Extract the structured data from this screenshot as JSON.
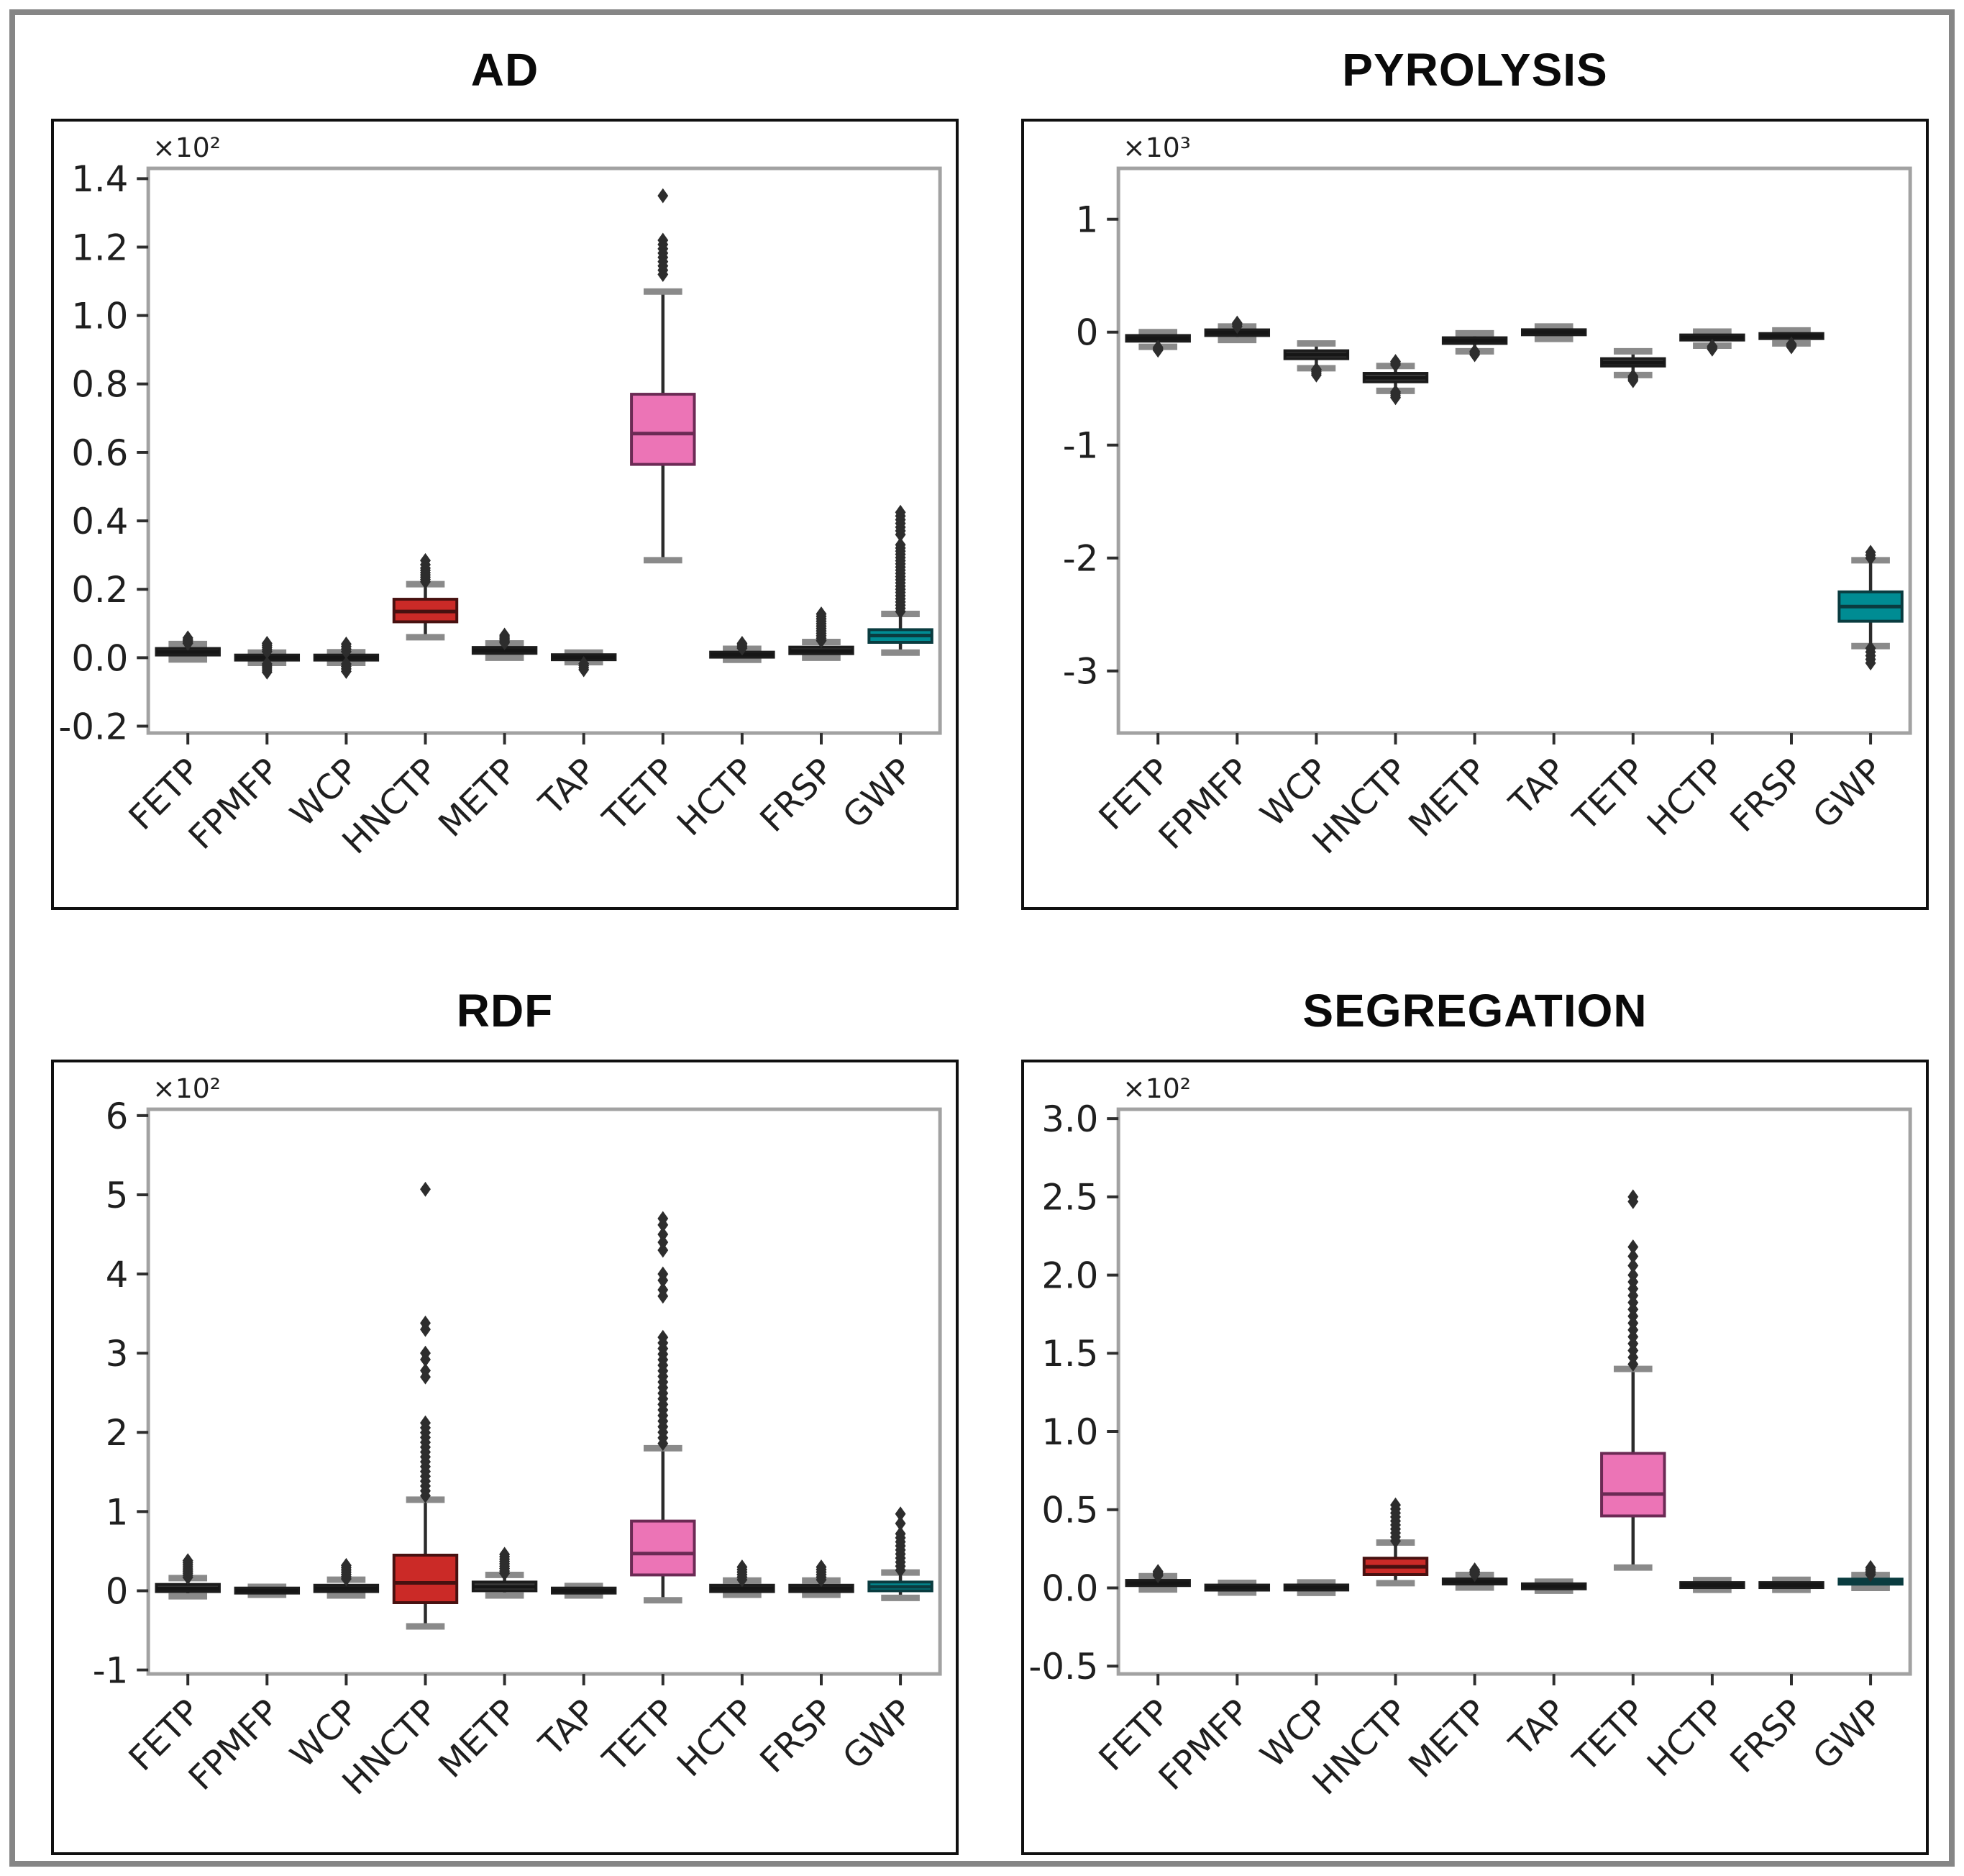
{
  "style": {
    "background": "#ffffff",
    "outer_border": "#868686",
    "panel_border": "#0f0f0f",
    "spine_color": "#a2a2a2",
    "tick_color": "#2e2e2e",
    "text_color": "#1f1f1f",
    "whisker_color": "#2b2b2b",
    "cap_color": "#8a8a8a",
    "flier_color": "#2d2d2d"
  },
  "colors": {
    "default": {
      "fill": "#3d3d3d",
      "stroke": "#1c1c1c",
      "median": "#161616"
    },
    "red": {
      "fill": "#cb2a27",
      "stroke": "#471110",
      "median": "#471110"
    },
    "pink": {
      "fill": "#ec74b6",
      "stroke": "#6b2a54",
      "median": "#6b2a54"
    },
    "teal": {
      "fill": "#008c93",
      "stroke": "#0a3c40",
      "median": "#0a3c40"
    }
  },
  "categories": [
    "FETP",
    "FPMFP",
    "WCP",
    "HNCTP",
    "METP",
    "TAP",
    "TETP",
    "HCTP",
    "FRSP",
    "GWP"
  ],
  "chart_data": [
    {
      "type": "boxplot",
      "title": "AD",
      "offset_label": "×10²",
      "xlabel": "",
      "ylabel": "",
      "ylim": [
        -0.22,
        1.43
      ],
      "yticks": [
        {
          "v": 1.4,
          "label": "1.4"
        },
        {
          "v": 1.2,
          "label": "1.2"
        },
        {
          "v": 1.0,
          "label": "1.0"
        },
        {
          "v": 0.8,
          "label": "0.8"
        },
        {
          "v": 0.6,
          "label": "0.6"
        },
        {
          "v": 0.4,
          "label": "0.4"
        },
        {
          "v": 0.2,
          "label": "0.2"
        },
        {
          "v": 0.0,
          "label": "0.0"
        },
        {
          "v": -0.2,
          "label": "-0.2"
        }
      ],
      "boxes": [
        {
          "category": "FETP",
          "color": "default",
          "whislo": -0.005,
          "q1": 0.008,
          "med": 0.017,
          "q3": 0.027,
          "whishi": 0.04,
          "fliers": [],
          "fliers_dense": [
            [
              0.042,
              0.058,
              5
            ]
          ]
        },
        {
          "category": "FPMFP",
          "color": "default",
          "whislo": -0.015,
          "q1": -0.005,
          "med": 0.0,
          "q3": 0.006,
          "whishi": 0.015,
          "fliers": [],
          "fliers_dense": [
            [
              -0.042,
              -0.018,
              5
            ],
            [
              0.018,
              0.042,
              5
            ]
          ]
        },
        {
          "category": "WCP",
          "color": "default",
          "whislo": -0.015,
          "q1": -0.006,
          "med": 0.0,
          "q3": 0.007,
          "whishi": 0.016,
          "fliers": [],
          "fliers_dense": [
            [
              -0.04,
              -0.018,
              4
            ],
            [
              0.018,
              0.04,
              4
            ]
          ]
        },
        {
          "category": "HNCTP",
          "color": "red",
          "whislo": 0.06,
          "q1": 0.105,
          "med": 0.135,
          "q3": 0.171,
          "whishi": 0.215,
          "fliers": [
            0.272,
            0.284
          ],
          "fliers_dense": [
            [
              0.222,
              0.262,
              7
            ]
          ]
        },
        {
          "category": "METP",
          "color": "default",
          "whislo": 0.0,
          "q1": 0.013,
          "med": 0.021,
          "q3": 0.03,
          "whishi": 0.042,
          "fliers": [],
          "fliers_dense": [
            [
              0.044,
              0.066,
              6
            ]
          ]
        },
        {
          "category": "TAP",
          "color": "default",
          "whislo": -0.013,
          "q1": -0.004,
          "med": 0.001,
          "q3": 0.007,
          "whishi": 0.015,
          "fliers": [],
          "fliers_dense": [
            [
              -0.035,
              -0.017,
              4
            ]
          ]
        },
        {
          "category": "TETP",
          "color": "pink",
          "whislo": 0.285,
          "q1": 0.565,
          "med": 0.655,
          "q3": 0.77,
          "whishi": 1.07,
          "fliers": [
            1.35
          ],
          "fliers_dense": [
            [
              1.12,
              1.22,
              9
            ]
          ]
        },
        {
          "category": "HCTP",
          "color": "default",
          "whislo": -0.006,
          "q1": 0.002,
          "med": 0.009,
          "q3": 0.016,
          "whishi": 0.026,
          "fliers": [],
          "fliers_dense": [
            [
              0.028,
              0.042,
              4
            ]
          ]
        },
        {
          "category": "FRSP",
          "color": "default",
          "whislo": 0.0,
          "q1": 0.012,
          "med": 0.02,
          "q3": 0.031,
          "whishi": 0.046,
          "fliers": [],
          "fliers_dense": [
            [
              0.05,
              0.128,
              12
            ]
          ]
        },
        {
          "category": "GWP",
          "color": "teal",
          "whislo": 0.015,
          "q1": 0.045,
          "med": 0.065,
          "q3": 0.082,
          "whishi": 0.128,
          "fliers": [],
          "fliers_dense": [
            [
              0.135,
              0.33,
              22
            ],
            [
              0.36,
              0.425,
              7
            ]
          ]
        }
      ]
    },
    {
      "type": "boxplot",
      "title": "PYROLYSIS",
      "offset_label": "×10³",
      "xlabel": "",
      "ylabel": "",
      "ylim": [
        -3.55,
        1.45
      ],
      "yticks": [
        {
          "v": 1,
          "label": "1"
        },
        {
          "v": 0,
          "label": "0"
        },
        {
          "v": -1,
          "label": "-1"
        },
        {
          "v": -2,
          "label": "-2"
        },
        {
          "v": -3,
          "label": "-3"
        }
      ],
      "boxes": [
        {
          "category": "FETP",
          "color": "default",
          "whislo": -0.13,
          "q1": -0.08,
          "med": -0.055,
          "q3": -0.03,
          "whishi": 0.0,
          "fliers": [],
          "fliers_dense": [
            [
              -0.16,
              -0.135,
              3
            ]
          ]
        },
        {
          "category": "FPMFP",
          "color": "default",
          "whislo": -0.07,
          "q1": -0.03,
          "med": -0.005,
          "q3": 0.02,
          "whishi": 0.05,
          "fliers": [],
          "fliers_dense": [
            [
              0.05,
              0.08,
              3
            ]
          ]
        },
        {
          "category": "WCP",
          "color": "default",
          "whislo": -0.32,
          "q1": -0.235,
          "med": -0.2,
          "q3": -0.165,
          "whishi": -0.1,
          "fliers": [],
          "fliers_dense": [
            [
              -0.38,
              -0.33,
              4
            ]
          ]
        },
        {
          "category": "HNCTP",
          "color": "default",
          "whislo": -0.52,
          "q1": -0.44,
          "med": -0.405,
          "q3": -0.365,
          "whishi": -0.3,
          "fliers": [],
          "fliers_dense": [
            [
              -0.58,
              -0.53,
              4
            ],
            [
              -0.29,
              -0.26,
              3
            ]
          ]
        },
        {
          "category": "METP",
          "color": "default",
          "whislo": -0.17,
          "q1": -0.1,
          "med": -0.075,
          "q3": -0.05,
          "whishi": -0.01,
          "fliers": [],
          "fliers_dense": [
            [
              -0.2,
              -0.17,
              3
            ]
          ]
        },
        {
          "category": "TAP",
          "color": "default",
          "whislo": -0.06,
          "q1": -0.02,
          "med": 0.0,
          "q3": 0.018,
          "whishi": 0.05,
          "fliers": [],
          "fliers_dense": []
        },
        {
          "category": "TETP",
          "color": "default",
          "whislo": -0.38,
          "q1": -0.3,
          "med": -0.27,
          "q3": -0.235,
          "whishi": -0.17,
          "fliers": [],
          "fliers_dense": [
            [
              -0.43,
              -0.39,
              4
            ]
          ]
        },
        {
          "category": "HCTP",
          "color": "default",
          "whislo": -0.12,
          "q1": -0.07,
          "med": -0.05,
          "q3": -0.025,
          "whishi": 0.005,
          "fliers": [],
          "fliers_dense": [
            [
              -0.15,
              -0.125,
              3
            ]
          ]
        },
        {
          "category": "FRSP",
          "color": "default",
          "whislo": -0.1,
          "q1": -0.055,
          "med": -0.035,
          "q3": -0.015,
          "whishi": 0.015,
          "fliers": [],
          "fliers_dense": [
            [
              -0.13,
              -0.105,
              3
            ]
          ]
        },
        {
          "category": "GWP",
          "color": "teal",
          "whislo": -2.78,
          "q1": -2.56,
          "med": -2.43,
          "q3": -2.3,
          "whishi": -2.02,
          "fliers": [],
          "fliers_dense": [
            [
              -2.93,
              -2.8,
              5
            ],
            [
              -2.0,
              -1.95,
              3
            ]
          ]
        }
      ]
    },
    {
      "type": "boxplot",
      "title": "RDF",
      "offset_label": "×10²",
      "xlabel": "",
      "ylabel": "",
      "ylim": [
        -1.05,
        6.08
      ],
      "yticks": [
        {
          "v": 6,
          "label": "6"
        },
        {
          "v": 5,
          "label": "5"
        },
        {
          "v": 4,
          "label": "4"
        },
        {
          "v": 3,
          "label": "3"
        },
        {
          "v": 2,
          "label": "2"
        },
        {
          "v": 1,
          "label": "1"
        },
        {
          "v": 0,
          "label": "0"
        },
        {
          "v": -1,
          "label": "-1"
        }
      ],
      "boxes": [
        {
          "category": "FETP",
          "color": "default",
          "whislo": -0.07,
          "q1": -0.01,
          "med": 0.03,
          "q3": 0.08,
          "whishi": 0.16,
          "fliers": [],
          "fliers_dense": [
            [
              0.17,
              0.38,
              9
            ]
          ]
        },
        {
          "category": "FPMFP",
          "color": "default",
          "whislo": -0.05,
          "q1": -0.015,
          "med": 0.0,
          "q3": 0.02,
          "whishi": 0.05,
          "fliers": [],
          "fliers_dense": []
        },
        {
          "category": "WCP",
          "color": "default",
          "whislo": -0.06,
          "q1": -0.01,
          "med": 0.03,
          "q3": 0.07,
          "whishi": 0.14,
          "fliers": [],
          "fliers_dense": [
            [
              0.15,
              0.32,
              7
            ]
          ]
        },
        {
          "category": "HNCTP",
          "color": "red",
          "whislo": -0.45,
          "q1": -0.15,
          "med": 0.1,
          "q3": 0.45,
          "whishi": 1.15,
          "fliers": [
            2.7,
            2.78,
            2.92,
            3.0,
            3.3,
            3.38,
            5.07
          ],
          "fliers_dense": [
            [
              1.2,
              2.12,
              16
            ]
          ]
        },
        {
          "category": "METP",
          "color": "default",
          "whislo": -0.06,
          "q1": 0.0,
          "med": 0.05,
          "q3": 0.11,
          "whishi": 0.2,
          "fliers": [],
          "fliers_dense": [
            [
              0.22,
              0.46,
              9
            ]
          ]
        },
        {
          "category": "TAP",
          "color": "default",
          "whislo": -0.06,
          "q1": -0.02,
          "med": 0.0,
          "q3": 0.025,
          "whishi": 0.06,
          "fliers": [],
          "fliers_dense": []
        },
        {
          "category": "TETP",
          "color": "pink",
          "whislo": -0.12,
          "q1": 0.2,
          "med": 0.47,
          "q3": 0.88,
          "whishi": 1.8,
          "fliers": [
            3.72,
            3.8,
            3.92,
            4.0,
            4.3,
            4.4,
            4.5,
            4.62,
            4.7
          ],
          "fliers_dense": [
            [
              1.86,
              3.2,
              20
            ]
          ]
        },
        {
          "category": "HCTP",
          "color": "default",
          "whislo": -0.05,
          "q1": -0.01,
          "med": 0.03,
          "q3": 0.07,
          "whishi": 0.13,
          "fliers": [],
          "fliers_dense": [
            [
              0.14,
              0.3,
              6
            ]
          ]
        },
        {
          "category": "FRSP",
          "color": "default",
          "whislo": -0.05,
          "q1": -0.01,
          "med": 0.03,
          "q3": 0.07,
          "whishi": 0.13,
          "fliers": [],
          "fliers_dense": [
            [
              0.14,
              0.3,
              6
            ]
          ]
        },
        {
          "category": "GWP",
          "color": "teal",
          "whislo": -0.09,
          "q1": 0.0,
          "med": 0.05,
          "q3": 0.11,
          "whishi": 0.23,
          "fliers": [
            0.85,
            0.97
          ],
          "fliers_dense": [
            [
              0.26,
              0.72,
              10
            ]
          ]
        }
      ]
    },
    {
      "type": "boxplot",
      "title": "SEGREGATION",
      "offset_label": "×10²",
      "xlabel": "",
      "ylabel": "",
      "ylim": [
        -0.55,
        3.06
      ],
      "yticks": [
        {
          "v": 3.0,
          "label": "3.0"
        },
        {
          "v": 2.5,
          "label": "2.5"
        },
        {
          "v": 2.0,
          "label": "2.0"
        },
        {
          "v": 1.5,
          "label": "1.5"
        },
        {
          "v": 1.0,
          "label": "1.0"
        },
        {
          "v": 0.5,
          "label": "0.5"
        },
        {
          "v": 0.0,
          "label": "0.0"
        },
        {
          "v": -0.5,
          "label": "-0.5"
        }
      ],
      "boxes": [
        {
          "category": "FETP",
          "color": "default",
          "whislo": -0.01,
          "q1": 0.015,
          "med": 0.03,
          "q3": 0.048,
          "whishi": 0.075,
          "fliers": [],
          "fliers_dense": [
            [
              0.078,
              0.105,
              4
            ]
          ]
        },
        {
          "category": "FPMFP",
          "color": "default",
          "whislo": -0.03,
          "q1": -0.008,
          "med": 0.002,
          "q3": 0.012,
          "whishi": 0.032,
          "fliers": [],
          "fliers_dense": []
        },
        {
          "category": "WCP",
          "color": "default",
          "whislo": -0.032,
          "q1": -0.008,
          "med": 0.002,
          "q3": 0.013,
          "whishi": 0.035,
          "fliers": [],
          "fliers_dense": []
        },
        {
          "category": "HNCTP",
          "color": "red",
          "whislo": 0.03,
          "q1": 0.085,
          "med": 0.135,
          "q3": 0.19,
          "whishi": 0.29,
          "fliers": [],
          "fliers_dense": [
            [
              0.3,
              0.53,
              10
            ]
          ]
        },
        {
          "category": "METP",
          "color": "default",
          "whislo": 0.002,
          "q1": 0.025,
          "med": 0.04,
          "q3": 0.057,
          "whishi": 0.083,
          "fliers": [],
          "fliers_dense": [
            [
              0.086,
              0.115,
              4
            ]
          ]
        },
        {
          "category": "TAP",
          "color": "default",
          "whislo": -0.018,
          "q1": 0.0,
          "med": 0.01,
          "q3": 0.02,
          "whishi": 0.04,
          "fliers": [],
          "fliers_dense": []
        },
        {
          "category": "TETP",
          "color": "pink",
          "whislo": 0.13,
          "q1": 0.46,
          "med": 0.6,
          "q3": 0.86,
          "whishi": 1.4,
          "fliers": [
            2.06,
            2.12,
            2.18,
            2.47,
            2.5
          ],
          "fliers_dense": [
            [
              1.43,
              2.0,
              14
            ]
          ]
        },
        {
          "category": "HCTP",
          "color": "default",
          "whislo": -0.012,
          "q1": 0.006,
          "med": 0.018,
          "q3": 0.03,
          "whishi": 0.05,
          "fliers": [],
          "fliers_dense": []
        },
        {
          "category": "FRSP",
          "color": "default",
          "whislo": -0.012,
          "q1": 0.006,
          "med": 0.018,
          "q3": 0.03,
          "whishi": 0.052,
          "fliers": [],
          "fliers_dense": []
        },
        {
          "category": "GWP",
          "color": "teal",
          "whislo": 0.0,
          "q1": 0.024,
          "med": 0.04,
          "q3": 0.056,
          "whishi": 0.082,
          "fliers": [],
          "fliers_dense": [
            [
              0.085,
              0.13,
              5
            ]
          ]
        }
      ]
    }
  ]
}
